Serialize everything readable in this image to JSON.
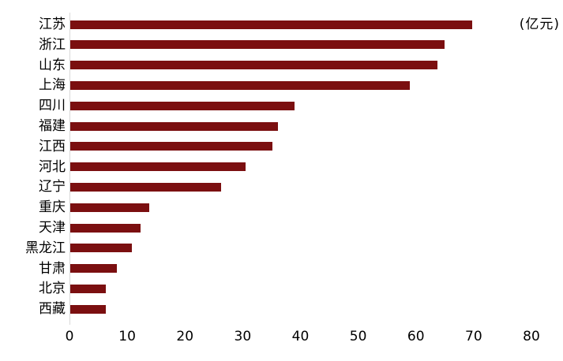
{
  "chart_data": {
    "type": "bar",
    "orientation": "horizontal",
    "title": "",
    "unit_label": "(亿元)",
    "categories": [
      "江苏",
      "浙江",
      "山东",
      "上海",
      "四川",
      "福建",
      "江西",
      "河北",
      "辽宁",
      "重庆",
      "天津",
      "黑龙江",
      "甘肃",
      "北京",
      "西藏"
    ],
    "values": [
      69.6,
      64.8,
      63.6,
      58.8,
      38.9,
      36.0,
      35.0,
      30.4,
      26.1,
      13.7,
      12.2,
      10.7,
      8.1,
      6.2,
      6.1
    ],
    "xlabel": "",
    "ylabel": "",
    "xlim": [
      0,
      80
    ],
    "x_ticks": [
      0,
      10,
      20,
      30,
      40,
      50,
      60,
      70,
      80
    ],
    "grid": false,
    "legend": null,
    "bar_color": "#7B0F10",
    "axis_color": "#D8D8D8",
    "text_color": "#000000",
    "background_color": "#FFFFFF"
  }
}
